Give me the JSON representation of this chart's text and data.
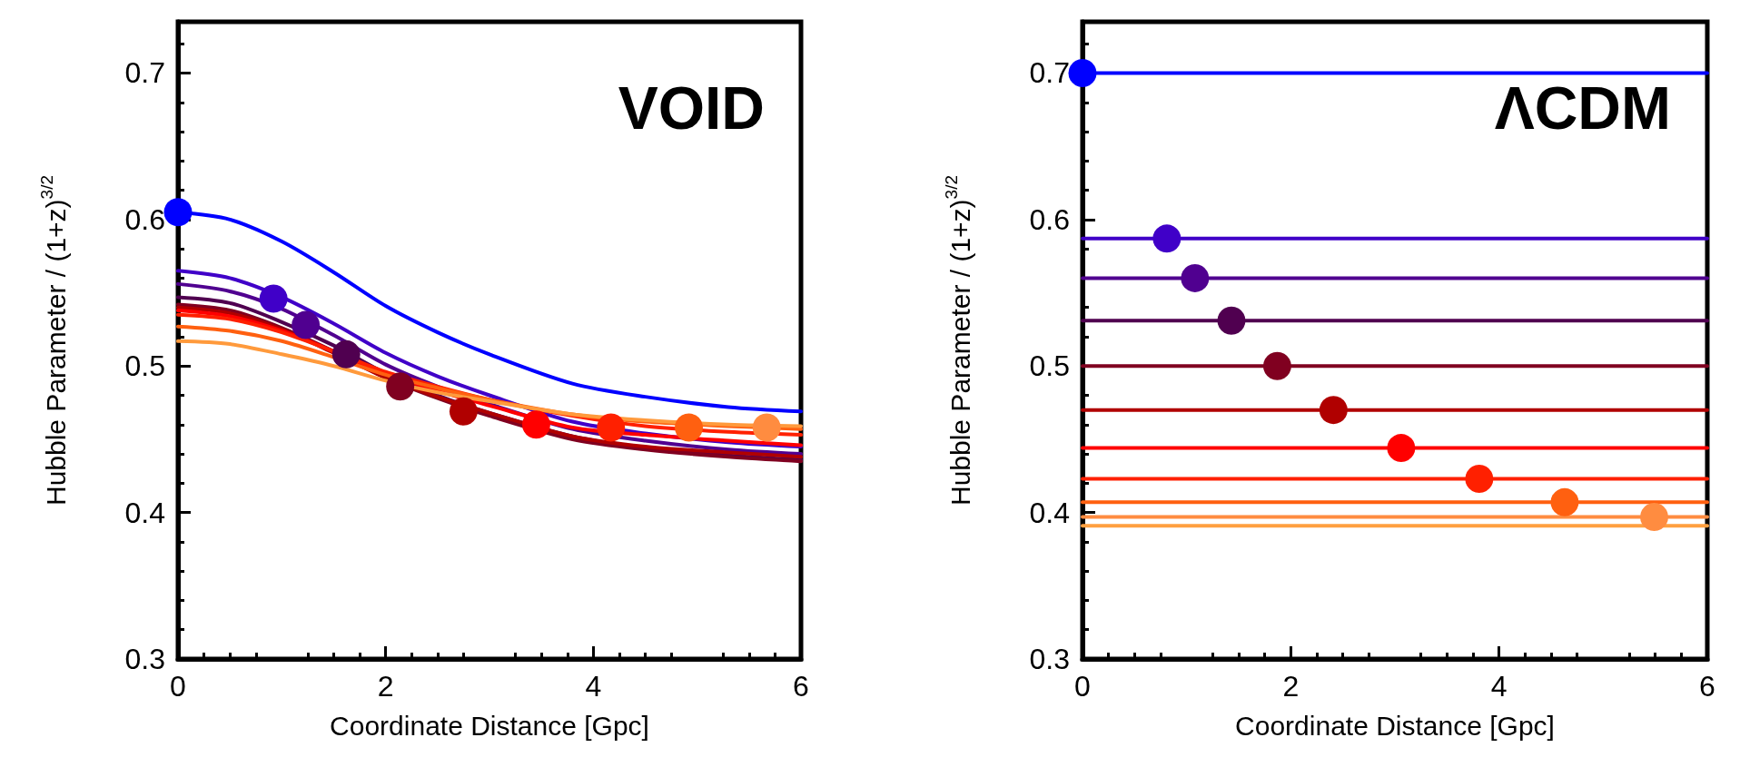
{
  "chart_data": [
    {
      "type": "line",
      "xlabel": "Coordinate Distance [Gpc]",
      "ylabel": "Hubble Parameter / (1+z)$^{3/2}$",
      "annotations": [
        "VOID"
      ],
      "xlim": [
        0,
        6
      ],
      "xticks": [
        0,
        2,
        4,
        6
      ],
      "ylim": [
        0.3,
        0.735
      ],
      "yticks": [
        0.3,
        0.4,
        0.5,
        0.6,
        0.7
      ],
      "grid": false,
      "line_style": "solid",
      "x": [
        0,
        0.5,
        1,
        1.5,
        2,
        2.5,
        3,
        3.8,
        4.5,
        5.3,
        6
      ],
      "series": [
        {
          "color": "#0000ff",
          "values": [
            0.605,
            0.6,
            0.585,
            0.564,
            0.541,
            0.523,
            0.508,
            0.488,
            0.479,
            0.472,
            0.469
          ]
        },
        {
          "color": "#4000c8",
          "values": [
            0.565,
            0.56,
            0.547,
            0.529,
            0.509,
            0.493,
            0.48,
            0.462,
            0.454,
            0.448,
            0.445
          ]
        },
        {
          "color": "#500090",
          "values": [
            0.556,
            0.551,
            0.539,
            0.521,
            0.501,
            0.486,
            0.474,
            0.457,
            0.449,
            0.443,
            0.44
          ]
        },
        {
          "color": "#500050",
          "values": [
            0.547,
            0.543,
            0.53,
            0.514,
            0.495,
            0.48,
            0.468,
            0.452,
            0.444,
            0.439,
            0.436
          ]
        },
        {
          "color": "#800020",
          "values": [
            0.542,
            0.538,
            0.526,
            0.51,
            0.492,
            0.478,
            0.466,
            0.45,
            0.443,
            0.438,
            0.435
          ]
        },
        {
          "color": "#b00000",
          "values": [
            0.54,
            0.536,
            0.525,
            0.509,
            0.492,
            0.479,
            0.468,
            0.452,
            0.445,
            0.441,
            0.438
          ]
        },
        {
          "color": "#ff0000",
          "values": [
            0.538,
            0.534,
            0.524,
            0.51,
            0.495,
            0.483,
            0.473,
            0.458,
            0.453,
            0.449,
            0.446
          ]
        },
        {
          "color": "#ff2000",
          "values": [
            0.535,
            0.532,
            0.523,
            0.51,
            0.496,
            0.486,
            0.477,
            0.466,
            0.459,
            0.455,
            0.453
          ]
        },
        {
          "color": "#ff6010",
          "values": [
            0.527,
            0.524,
            0.517,
            0.506,
            0.494,
            0.485,
            0.477,
            0.467,
            0.462,
            0.459,
            0.457
          ]
        },
        {
          "color": "#ff9a3c",
          "values": [
            0.517,
            0.515,
            0.508,
            0.5,
            0.49,
            0.482,
            0.476,
            0.467,
            0.463,
            0.46,
            0.459
          ]
        },
        {
          "type": "scatter",
          "marker": "circle",
          "color": "#0000ff",
          "x": [
            0
          ],
          "values": [
            0.605
          ]
        },
        {
          "type": "scatter",
          "marker": "circle",
          "color": "#4000c8",
          "x": [
            0.92
          ],
          "values": [
            0.546
          ]
        },
        {
          "type": "scatter",
          "marker": "circle",
          "color": "#500090",
          "x": [
            1.23
          ],
          "values": [
            0.528
          ]
        },
        {
          "type": "scatter",
          "marker": "circle",
          "color": "#500050",
          "x": [
            1.62
          ],
          "values": [
            0.508
          ]
        },
        {
          "type": "scatter",
          "marker": "circle",
          "color": "#800020",
          "x": [
            2.14
          ],
          "values": [
            0.486
          ]
        },
        {
          "type": "scatter",
          "marker": "circle",
          "color": "#b00000",
          "x": [
            2.75
          ],
          "values": [
            0.469
          ]
        },
        {
          "type": "scatter",
          "marker": "circle",
          "color": "#ff0000",
          "x": [
            3.45
          ],
          "values": [
            0.46
          ]
        },
        {
          "type": "scatter",
          "marker": "circle",
          "color": "#ff2000",
          "x": [
            4.17
          ],
          "values": [
            0.458
          ]
        },
        {
          "type": "scatter",
          "marker": "circle",
          "color": "#ff6010",
          "x": [
            4.92
          ],
          "values": [
            0.458
          ]
        },
        {
          "type": "scatter",
          "marker": "circle",
          "color": "#ff8c40",
          "x": [
            5.67
          ],
          "values": [
            0.458
          ]
        }
      ]
    },
    {
      "type": "line",
      "xlabel": "Coordinate Distance [Gpc]",
      "ylabel": "Hubble Parameter / (1+z)$^{3/2}$",
      "annotations": [
        "ΛCDM"
      ],
      "xlim": [
        0,
        6
      ],
      "xticks": [
        0,
        2,
        4,
        6
      ],
      "ylim": [
        0.3,
        0.735
      ],
      "yticks": [
        0.3,
        0.4,
        0.5,
        0.6,
        0.7
      ],
      "grid": false,
      "line_style": "solid",
      "x": [
        0,
        6
      ],
      "series": [
        {
          "color": "#0000ff",
          "values": [
            0.7,
            0.7
          ]
        },
        {
          "color": "#4000c8",
          "values": [
            0.587,
            0.587
          ]
        },
        {
          "color": "#500090",
          "values": [
            0.56,
            0.56
          ]
        },
        {
          "color": "#500050",
          "values": [
            0.531,
            0.531
          ]
        },
        {
          "color": "#800020",
          "values": [
            0.5,
            0.5
          ]
        },
        {
          "color": "#b00000",
          "values": [
            0.47,
            0.47
          ]
        },
        {
          "color": "#ff0000",
          "values": [
            0.444,
            0.444
          ]
        },
        {
          "color": "#ff2000",
          "values": [
            0.423,
            0.423
          ]
        },
        {
          "color": "#ff6010",
          "values": [
            0.407,
            0.407
          ]
        },
        {
          "color": "#ff8c40",
          "values": [
            0.397,
            0.397
          ]
        },
        {
          "color": "#ffa040",
          "values": [
            0.391,
            0.391
          ]
        },
        {
          "type": "scatter",
          "marker": "circle",
          "color": "#0000ff",
          "x": [
            0
          ],
          "values": [
            0.7
          ]
        },
        {
          "type": "scatter",
          "marker": "circle",
          "color": "#4000c8",
          "x": [
            0.81
          ],
          "values": [
            0.587
          ]
        },
        {
          "type": "scatter",
          "marker": "circle",
          "color": "#500090",
          "x": [
            1.08
          ],
          "values": [
            0.56
          ]
        },
        {
          "type": "scatter",
          "marker": "circle",
          "color": "#500050",
          "x": [
            1.43
          ],
          "values": [
            0.531
          ]
        },
        {
          "type": "scatter",
          "marker": "circle",
          "color": "#800020",
          "x": [
            1.87
          ],
          "values": [
            0.5
          ]
        },
        {
          "type": "scatter",
          "marker": "circle",
          "color": "#b00000",
          "x": [
            2.41
          ],
          "values": [
            0.47
          ]
        },
        {
          "type": "scatter",
          "marker": "circle",
          "color": "#ff0000",
          "x": [
            3.06
          ],
          "values": [
            0.444
          ]
        },
        {
          "type": "scatter",
          "marker": "circle",
          "color": "#ff2000",
          "x": [
            3.81
          ],
          "values": [
            0.423
          ]
        },
        {
          "type": "scatter",
          "marker": "circle",
          "color": "#ff6010",
          "x": [
            4.63
          ],
          "values": [
            0.407
          ]
        },
        {
          "type": "scatter",
          "marker": "circle",
          "color": "#ff8c40",
          "x": [
            5.49
          ],
          "values": [
            0.397
          ]
        }
      ]
    }
  ]
}
